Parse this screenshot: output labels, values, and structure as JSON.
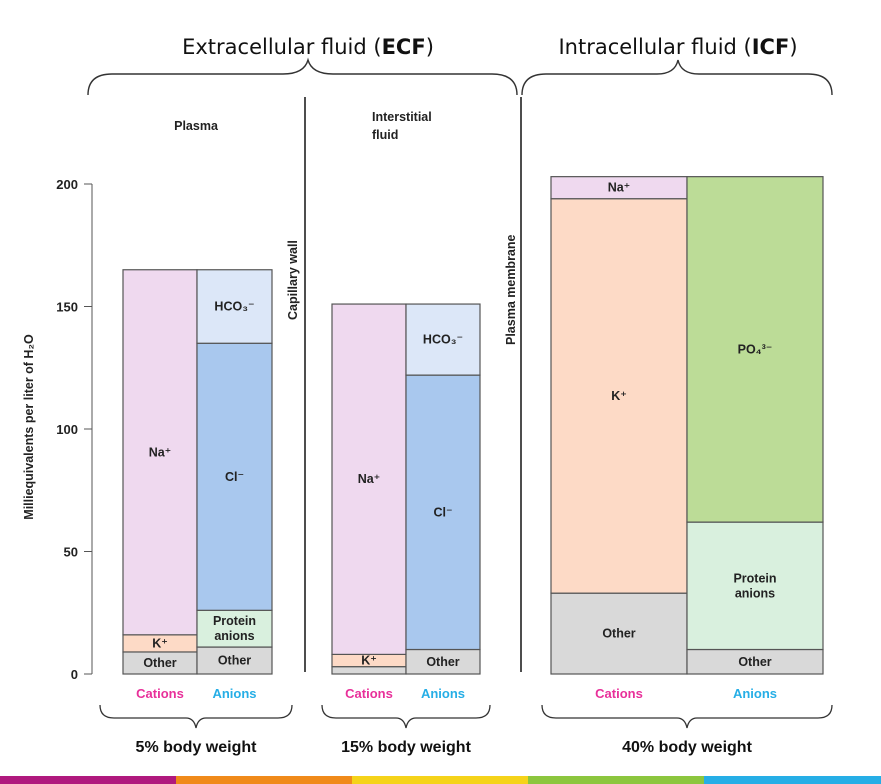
{
  "headers": {
    "ecf_main": "Extracellular fluid (",
    "ecf_abbr": "ECF",
    "ecf_close": ")",
    "icf_main": "Intracellular fluid (",
    "icf_abbr": "ICF",
    "icf_close": ")"
  },
  "sub_labels": {
    "plasma": "Plasma",
    "interstitial_1": "Interstitial",
    "interstitial_2": "fluid",
    "capillary_wall": "Capillary wall",
    "plasma_membrane": "Plasma membrane"
  },
  "colors": {
    "Na+": "#efd9ef",
    "K+": "#fddac6",
    "Other": "#d9d9d9",
    "Cl-": "#a9c8ee",
    "HCO3-": "#dce7f8",
    "Protein anions": "#d9f0de",
    "PO4 3-": "#bcdc97",
    "cations_label": "#e8309a",
    "anions_label": "#26aee6",
    "bottom_stripe": [
      "#b0197e",
      "#f08a1a",
      "#f5d31a",
      "#8cc63e",
      "#26aee6"
    ]
  },
  "chart_data": {
    "type": "bar",
    "stacked": true,
    "ylabel": "Milliequivalents per liter of H₂O",
    "ylim": [
      0,
      200
    ],
    "yticks": [
      0,
      50,
      100,
      150,
      200
    ],
    "category_labels": {
      "cations": "Cations",
      "anions": "Anions"
    },
    "groups": [
      {
        "name": "Plasma",
        "footer": "5% body weight",
        "cations": [
          {
            "ion": "Other",
            "value": 9,
            "label": "Other"
          },
          {
            "ion": "K+",
            "value": 7,
            "label": "K⁺"
          },
          {
            "ion": "Na+",
            "value": 149,
            "label": "Na⁺"
          }
        ],
        "anions": [
          {
            "ion": "Other",
            "value": 11,
            "label": "Other"
          },
          {
            "ion": "Protein anions",
            "value": 15,
            "label": "Protein|anions"
          },
          {
            "ion": "Cl-",
            "value": 109,
            "label": "Cl⁻"
          },
          {
            "ion": "HCO3-",
            "value": 30,
            "label": "HCO₃⁻"
          }
        ]
      },
      {
        "name": "Interstitial fluid",
        "footer": "15% body weight",
        "cations": [
          {
            "ion": "Other",
            "value": 3,
            "label": ""
          },
          {
            "ion": "K+",
            "value": 5,
            "label": "K⁺"
          },
          {
            "ion": "Na+",
            "value": 143,
            "label": "Na⁺"
          }
        ],
        "anions": [
          {
            "ion": "Other",
            "value": 10,
            "label": "Other"
          },
          {
            "ion": "Cl-",
            "value": 112,
            "label": "Cl⁻"
          },
          {
            "ion": "HCO3-",
            "value": 29,
            "label": "HCO₃⁻"
          }
        ]
      },
      {
        "name": "Intracellular fluid",
        "footer": "40% body weight",
        "cations": [
          {
            "ion": "Other",
            "value": 33,
            "label": "Other"
          },
          {
            "ion": "K+",
            "value": 161,
            "label": "K⁺"
          },
          {
            "ion": "Na+",
            "value": 9,
            "label": "Na⁺"
          }
        ],
        "anions": [
          {
            "ion": "Other",
            "value": 10,
            "label": "Other"
          },
          {
            "ion": "Protein anions",
            "value": 52,
            "label": "Protein|anions"
          },
          {
            "ion": "PO4 3-",
            "value": 141,
            "label": "PO₄³⁻"
          }
        ]
      }
    ]
  }
}
